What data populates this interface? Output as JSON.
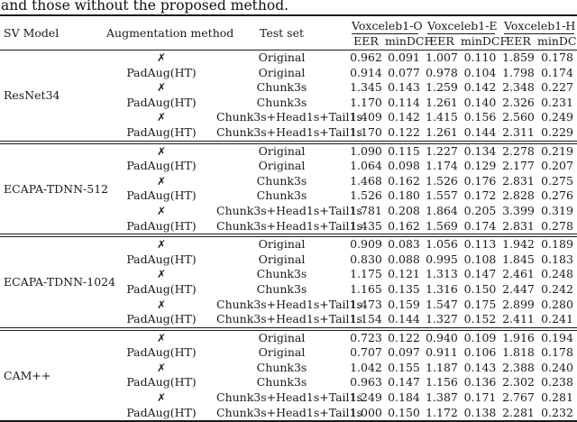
{
  "caption": "and those without the proposed method.",
  "table": {
    "headers": {
      "sv_model": "SV Model",
      "augmentation": "Augmentation method",
      "test_set": "Test set",
      "groups": [
        {
          "label": "Voxceleb1-O"
        },
        {
          "label": "Voxceleb1-E"
        },
        {
          "label": "Voxceleb1-H"
        }
      ],
      "metric_eer": "EER",
      "metric_mindcf": "minDCF"
    },
    "no_aug_symbol": "✗",
    "sections": [
      {
        "model": "ResNet34",
        "rows": [
          {
            "aug": "✗",
            "test_set": "Original",
            "values": [
              "0.962",
              "0.091",
              "1.007",
              "0.110",
              "1.859",
              "0.178"
            ]
          },
          {
            "aug": "PadAug(HT)",
            "test_set": "Original",
            "values": [
              "0.914",
              "0.077",
              "0.978",
              "0.104",
              "1.798",
              "0.174"
            ]
          },
          {
            "aug": "✗",
            "test_set": "Chunk3s",
            "values": [
              "1.345",
              "0.143",
              "1.259",
              "0.142",
              "2.348",
              "0.227"
            ]
          },
          {
            "aug": "PadAug(HT)",
            "test_set": "Chunk3s",
            "values": [
              "1.170",
              "0.114",
              "1.261",
              "0.140",
              "2.326",
              "0.231"
            ]
          },
          {
            "aug": "✗",
            "test_set": "Chunk3s+Head1s+Tail1s",
            "values": [
              "1.409",
              "0.142",
              "1.415",
              "0.156",
              "2.560",
              "0.249"
            ]
          },
          {
            "aug": "PadAug(HT)",
            "test_set": "Chunk3s+Head1s+Tail1s",
            "values": [
              "1.170",
              "0.122",
              "1.261",
              "0.144",
              "2.311",
              "0.229"
            ]
          }
        ]
      },
      {
        "model": "ECAPA-TDNN-512",
        "rows": [
          {
            "aug": "✗",
            "test_set": "Original",
            "values": [
              "1.090",
              "0.115",
              "1.227",
              "0.134",
              "2.278",
              "0.219"
            ]
          },
          {
            "aug": "PadAug(HT)",
            "test_set": "Original",
            "values": [
              "1.064",
              "0.098",
              "1.174",
              "0.129",
              "2.177",
              "0.207"
            ]
          },
          {
            "aug": "✗",
            "test_set": "Chunk3s",
            "values": [
              "1.468",
              "0.162",
              "1.526",
              "0.176",
              "2.831",
              "0.275"
            ]
          },
          {
            "aug": "PadAug(HT)",
            "test_set": "Chunk3s",
            "values": [
              "1.526",
              "0.180",
              "1.557",
              "0.172",
              "2.828",
              "0.276"
            ]
          },
          {
            "aug": "✗",
            "test_set": "Chunk3s+Head1s+Tail1s",
            "values": [
              "1.781",
              "0.208",
              "1.864",
              "0.205",
              "3.399",
              "0.319"
            ]
          },
          {
            "aug": "PadAug(HT)",
            "test_set": "Chunk3s+Head1s+Tail1s",
            "values": [
              "1.435",
              "0.162",
              "1.569",
              "0.174",
              "2.831",
              "0.278"
            ]
          }
        ]
      },
      {
        "model": "ECAPA-TDNN-1024",
        "rows": [
          {
            "aug": "✗",
            "test_set": "Original",
            "values": [
              "0.909",
              "0.083",
              "1.056",
              "0.113",
              "1.942",
              "0.189"
            ]
          },
          {
            "aug": "PadAug(HT)",
            "test_set": "Original",
            "values": [
              "0.830",
              "0.088",
              "0.995",
              "0.108",
              "1.845",
              "0.183"
            ]
          },
          {
            "aug": "✗",
            "test_set": "Chunk3s",
            "values": [
              "1.175",
              "0.121",
              "1.313",
              "0.147",
              "2.461",
              "0.248"
            ]
          },
          {
            "aug": "PadAug(HT)",
            "test_set": "Chunk3s",
            "values": [
              "1.165",
              "0.135",
              "1.316",
              "0.150",
              "2.447",
              "0.242"
            ]
          },
          {
            "aug": "✗",
            "test_set": "Chunk3s+Head1s+Tail1s",
            "values": [
              "1.473",
              "0.159",
              "1.547",
              "0.175",
              "2.899",
              "0.280"
            ]
          },
          {
            "aug": "PadAug(HT)",
            "test_set": "Chunk3s+Head1s+Tail1s",
            "values": [
              "1.154",
              "0.144",
              "1.327",
              "0.152",
              "2.411",
              "0.241"
            ]
          }
        ]
      },
      {
        "model": "CAM++",
        "rows": [
          {
            "aug": "✗",
            "test_set": "Original",
            "values": [
              "0.723",
              "0.122",
              "0.940",
              "0.109",
              "1.916",
              "0.194"
            ]
          },
          {
            "aug": "PadAug(HT)",
            "test_set": "Original",
            "values": [
              "0.707",
              "0.097",
              "0.911",
              "0.106",
              "1.818",
              "0.178"
            ]
          },
          {
            "aug": "✗",
            "test_set": "Chunk3s",
            "values": [
              "1.042",
              "0.155",
              "1.187",
              "0.143",
              "2.388",
              "0.240"
            ]
          },
          {
            "aug": "PadAug(HT)",
            "test_set": "Chunk3s",
            "values": [
              "0.963",
              "0.147",
              "1.156",
              "0.136",
              "2.302",
              "0.238"
            ]
          },
          {
            "aug": "✗",
            "test_set": "Chunk3s+Head1s+Tail1s",
            "values": [
              "1.249",
              "0.184",
              "1.387",
              "0.171",
              "2.767",
              "0.281"
            ]
          },
          {
            "aug": "PadAug(HT)",
            "test_set": "Chunk3s+Head1s+Tail1s",
            "values": [
              "1.000",
              "0.150",
              "1.172",
              "0.138",
              "2.281",
              "0.232"
            ]
          }
        ]
      }
    ]
  }
}
